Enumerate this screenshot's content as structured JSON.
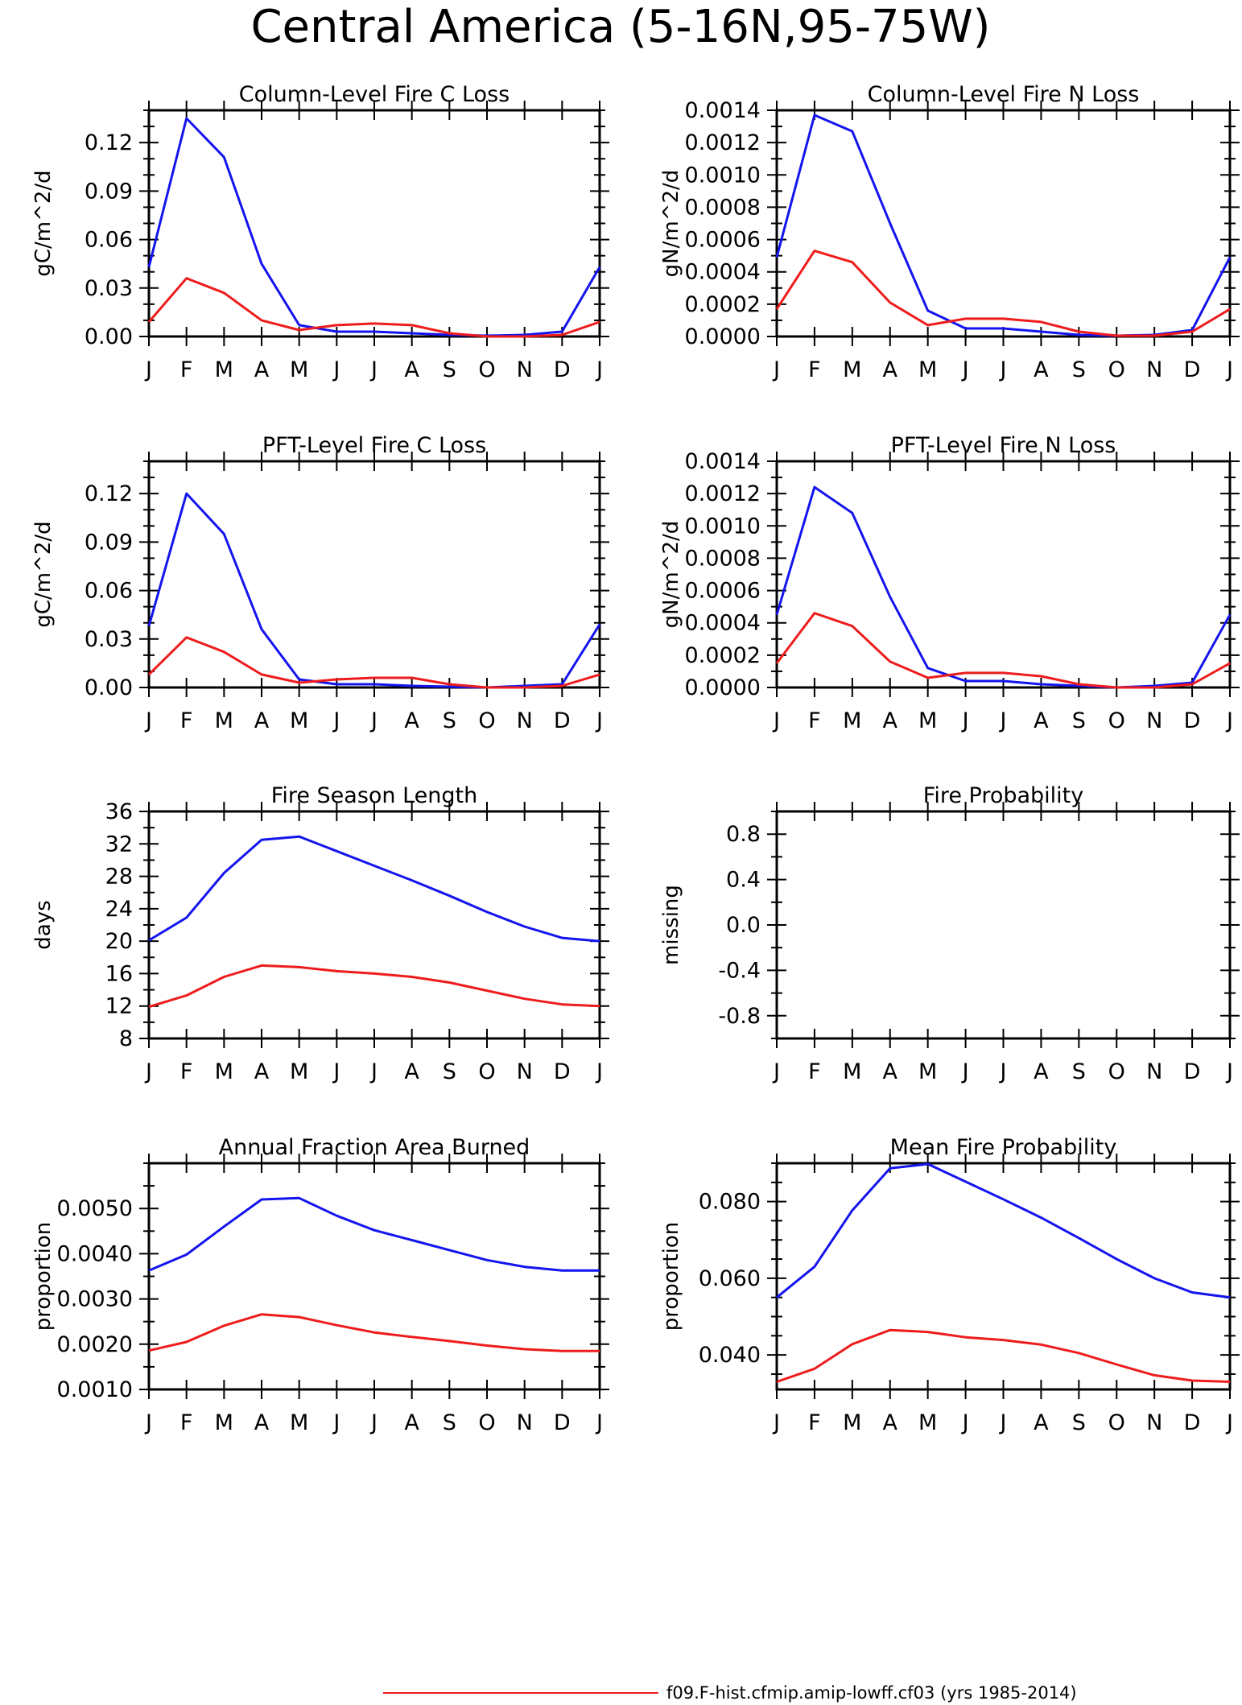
{
  "page_title": "Central America (5-16N,95-75W)",
  "legend": {
    "series": [
      {
        "label": "f09.F-hist.cfmip.amip-lowff.cf03 (yrs 1985-2014)",
        "color": "#ee1c1c"
      }
    ]
  },
  "colors": {
    "red": "#ee1c1c",
    "blue": "#1414ee",
    "frame": "#000000"
  },
  "chart_data": [
    {
      "type": "line",
      "title": "Column-Level Fire C Loss",
      "ylabel": "gC/m^2/d",
      "x": [
        "J",
        "F",
        "M",
        "A",
        "M",
        "J",
        "J",
        "A",
        "S",
        "O",
        "N",
        "D",
        "J"
      ],
      "ylim": [
        0,
        0.14
      ],
      "yticks": [
        0,
        0.03,
        0.06,
        0.09,
        0.12
      ],
      "yticklabels": [
        "0.00",
        "0.03",
        "0.06",
        "0.09",
        "0.12"
      ],
      "yminor": 0.01,
      "series": [
        {
          "color": "#1414ee",
          "values": [
            0.043,
            0.135,
            0.111,
            0.045,
            0.007,
            0.003,
            0.003,
            0.002,
            0.001,
            0.0005,
            0.001,
            0.003,
            0.043
          ]
        },
        {
          "color": "#ee1c1c",
          "values": [
            0.009,
            0.036,
            0.027,
            0.01,
            0.004,
            0.007,
            0.008,
            0.007,
            0.002,
            0.0,
            0.0,
            0.001,
            0.009
          ]
        }
      ]
    },
    {
      "type": "line",
      "title": "Column-Level Fire N Loss",
      "ylabel": "gN/m^2/d",
      "x": [
        "J",
        "F",
        "M",
        "A",
        "M",
        "J",
        "J",
        "A",
        "S",
        "O",
        "N",
        "D",
        "J"
      ],
      "ylim": [
        0,
        0.0014
      ],
      "yticks": [
        0,
        0.0002,
        0.0004,
        0.0006,
        0.0008,
        0.001,
        0.0012,
        0.0014
      ],
      "yticklabels": [
        "0.0000",
        "0.0002",
        "0.0004",
        "0.0006",
        "0.0008",
        "0.0010",
        "0.0012",
        "0.0014"
      ],
      "yminor": 0.0001,
      "series": [
        {
          "color": "#1414ee",
          "values": [
            0.00049,
            0.00137,
            0.00127,
            0.0007,
            0.00016,
            5e-05,
            5e-05,
            3e-05,
            1e-05,
            5e-06,
            1e-05,
            4e-05,
            0.00049
          ]
        },
        {
          "color": "#ee1c1c",
          "values": [
            0.00017,
            0.00053,
            0.00046,
            0.00021,
            7e-05,
            0.00011,
            0.00011,
            9e-05,
            3e-05,
            5e-06,
            5e-06,
            3e-05,
            0.00017
          ]
        }
      ]
    },
    {
      "type": "line",
      "title": "PFT-Level Fire C Loss",
      "ylabel": "gC/m^2/d",
      "x": [
        "J",
        "F",
        "M",
        "A",
        "M",
        "J",
        "J",
        "A",
        "S",
        "O",
        "N",
        "D",
        "J"
      ],
      "ylim": [
        0,
        0.14
      ],
      "yticks": [
        0,
        0.03,
        0.06,
        0.09,
        0.12
      ],
      "yticklabels": [
        "0.00",
        "0.03",
        "0.06",
        "0.09",
        "0.12"
      ],
      "yminor": 0.01,
      "series": [
        {
          "color": "#1414ee",
          "values": [
            0.038,
            0.12,
            0.095,
            0.036,
            0.005,
            0.002,
            0.002,
            0.001,
            0.0005,
            0.0,
            0.001,
            0.002,
            0.039
          ]
        },
        {
          "color": "#ee1c1c",
          "values": [
            0.008,
            0.031,
            0.022,
            0.008,
            0.003,
            0.005,
            0.006,
            0.006,
            0.002,
            0.0,
            0.0,
            0.001,
            0.008
          ]
        }
      ]
    },
    {
      "type": "line",
      "title": "PFT-Level Fire N Loss",
      "ylabel": "gN/m^2/d",
      "x": [
        "J",
        "F",
        "M",
        "A",
        "M",
        "J",
        "J",
        "A",
        "S",
        "O",
        "N",
        "D",
        "J"
      ],
      "ylim": [
        0,
        0.0014
      ],
      "yticks": [
        0,
        0.0002,
        0.0004,
        0.0006,
        0.0008,
        0.001,
        0.0012,
        0.0014
      ],
      "yticklabels": [
        "0.0000",
        "0.0002",
        "0.0004",
        "0.0006",
        "0.0008",
        "0.0010",
        "0.0012",
        "0.0014"
      ],
      "yminor": 0.0001,
      "series": [
        {
          "color": "#1414ee",
          "values": [
            0.00045,
            0.00124,
            0.00108,
            0.00056,
            0.00012,
            4e-05,
            4e-05,
            2e-05,
            1e-05,
            0.0,
            1e-05,
            3e-05,
            0.00045
          ]
        },
        {
          "color": "#ee1c1c",
          "values": [
            0.00015,
            0.00046,
            0.00038,
            0.00016,
            6e-05,
            9e-05,
            9e-05,
            7e-05,
            2e-05,
            0.0,
            0.0,
            2e-05,
            0.00015
          ]
        }
      ]
    },
    {
      "type": "line",
      "title": "Fire Season Length",
      "ylabel": "days",
      "x": [
        "J",
        "F",
        "M",
        "A",
        "M",
        "J",
        "J",
        "A",
        "S",
        "O",
        "N",
        "D",
        "J"
      ],
      "ylim": [
        8,
        36
      ],
      "yticks": [
        8,
        12,
        16,
        20,
        24,
        28,
        32,
        36
      ],
      "yticklabels": [
        "8",
        "12",
        "16",
        "20",
        "24",
        "28",
        "32",
        "36"
      ],
      "yminor": 2,
      "series": [
        {
          "color": "#1414ee",
          "values": [
            20.1,
            22.9,
            28.4,
            32.5,
            32.9,
            31.1,
            29.3,
            27.5,
            25.6,
            23.6,
            21.8,
            20.4,
            20.0
          ]
        },
        {
          "color": "#ee1c1c",
          "values": [
            11.9,
            13.3,
            15.6,
            17.0,
            16.8,
            16.3,
            16.0,
            15.6,
            14.9,
            13.9,
            12.9,
            12.2,
            12.0
          ]
        }
      ]
    },
    {
      "type": "line",
      "title": "Fire Probability",
      "ylabel": "missing",
      "x": [
        "J",
        "F",
        "M",
        "A",
        "M",
        "J",
        "J",
        "A",
        "S",
        "O",
        "N",
        "D",
        "J"
      ],
      "ylim": [
        -1.0,
        1.0
      ],
      "yticks": [
        -0.8,
        -0.4,
        0.0,
        0.4,
        0.8
      ],
      "yticklabels": [
        "-0.8",
        "-0.4",
        "0.0",
        "0.4",
        "0.8"
      ],
      "yminor": 0.2,
      "series": []
    },
    {
      "type": "line",
      "title": "Annual Fraction Area Burned",
      "ylabel": "proportion",
      "x": [
        "J",
        "F",
        "M",
        "A",
        "M",
        "J",
        "J",
        "A",
        "S",
        "O",
        "N",
        "D",
        "J"
      ],
      "ylim": [
        0.001,
        0.006
      ],
      "yticks": [
        0.001,
        0.002,
        0.003,
        0.004,
        0.005
      ],
      "yticklabels": [
        "0.0010",
        "0.0020",
        "0.0030",
        "0.0040",
        "0.0050"
      ],
      "yminor": 0.0005,
      "series": [
        {
          "color": "#1414ee",
          "values": [
            0.00363,
            0.00398,
            0.0046,
            0.0052,
            0.00523,
            0.00484,
            0.00452,
            0.0043,
            0.00408,
            0.00386,
            0.00371,
            0.00363,
            0.00363
          ]
        },
        {
          "color": "#ee1c1c",
          "values": [
            0.00186,
            0.00205,
            0.00241,
            0.00266,
            0.0026,
            0.00242,
            0.00226,
            0.00216,
            0.00207,
            0.00197,
            0.00189,
            0.00185,
            0.00185
          ]
        }
      ]
    },
    {
      "type": "line",
      "title": "Mean Fire Probability",
      "ylabel": "proportion",
      "x": [
        "J",
        "F",
        "M",
        "A",
        "M",
        "J",
        "J",
        "A",
        "S",
        "O",
        "N",
        "D",
        "J"
      ],
      "ylim": [
        0.031,
        0.09
      ],
      "yticks": [
        0.04,
        0.06,
        0.08
      ],
      "yticklabels": [
        "0.040",
        "0.060",
        "0.080"
      ],
      "yminor": 0.005,
      "series": [
        {
          "color": "#1414ee",
          "values": [
            0.055,
            0.063,
            0.0777,
            0.0887,
            0.0898,
            0.0852,
            0.0806,
            0.0758,
            0.0705,
            0.065,
            0.06,
            0.0563,
            0.055
          ]
        },
        {
          "color": "#ee1c1c",
          "values": [
            0.033,
            0.0364,
            0.0428,
            0.0465,
            0.046,
            0.0446,
            0.0439,
            0.0427,
            0.0405,
            0.0375,
            0.0347,
            0.0333,
            0.033
          ]
        }
      ]
    }
  ]
}
